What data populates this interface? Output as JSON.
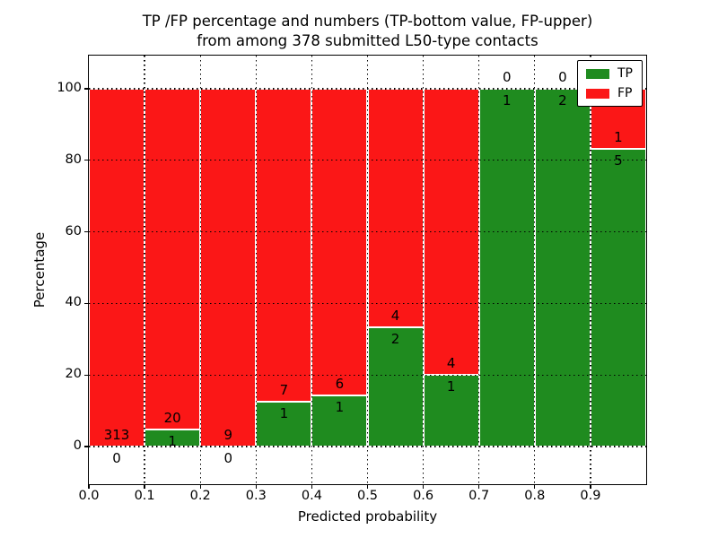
{
  "title": {
    "line1": "TP /FP percentage and numbers (TP-bottom value, FP-upper)",
    "line2": "from among 378 submitted L50-type contacts"
  },
  "axes": {
    "xlabel": "Predicted probability",
    "ylabel": "Percentage",
    "x_tick_labels": [
      "0.0",
      "0.1",
      "0.2",
      "0.3",
      "0.4",
      "0.5",
      "0.6",
      "0.7",
      "0.8",
      "0.9"
    ],
    "y_tick_labels": [
      "0",
      "20",
      "40",
      "60",
      "80",
      "100"
    ],
    "x_range": [
      0.0,
      1.0
    ],
    "y_range": [
      0,
      100
    ],
    "grid": true,
    "grid_style": "black dotted, drawn above bars"
  },
  "legend": {
    "position": "upper right",
    "items": [
      {
        "label": "TP",
        "color": "#1f8b1f"
      },
      {
        "label": "FP",
        "color": "#fb1717"
      }
    ]
  },
  "chart_data": {
    "type": "bar",
    "stacked": true,
    "normalized_to_percent": true,
    "title": "TP /FP percentage and numbers (TP-bottom value, FP-upper) from among 378 submitted L50-type contacts",
    "xlabel": "Predicted probability",
    "ylabel": "Percentage",
    "ylim": [
      0,
      100
    ],
    "bin_width": 0.1,
    "bins": [
      "0.0-0.1",
      "0.1-0.2",
      "0.2-0.3",
      "0.3-0.4",
      "0.4-0.5",
      "0.5-0.6",
      "0.6-0.7",
      "0.7-0.8",
      "0.8-0.9",
      "0.9-1.0"
    ],
    "bin_starts": [
      0.0,
      0.1,
      0.2,
      0.3,
      0.4,
      0.5,
      0.6,
      0.7,
      0.8,
      0.9
    ],
    "series": [
      {
        "name": "TP",
        "color": "#1f8b1f",
        "values": [
          0,
          1,
          0,
          1,
          1,
          2,
          1,
          1,
          2,
          5
        ]
      },
      {
        "name": "FP",
        "color": "#fb1717",
        "values": [
          313,
          20,
          9,
          7,
          6,
          4,
          4,
          0,
          0,
          1
        ]
      }
    ],
    "tp_percent_heights": [
      0,
      4.76,
      0,
      12.5,
      14.29,
      33.33,
      20.0,
      100,
      100,
      83.33
    ],
    "total_contacts": 378,
    "bar_edge_color": "#ffffff",
    "label_rule": "FP count printed just above green/red boundary, TP count just below it"
  },
  "colors": {
    "tp_green": "#1f8b1f",
    "fp_red": "#fb1717",
    "background": "#ffffff",
    "axis": "#000000",
    "grid": "#000000",
    "text": "#000000"
  }
}
